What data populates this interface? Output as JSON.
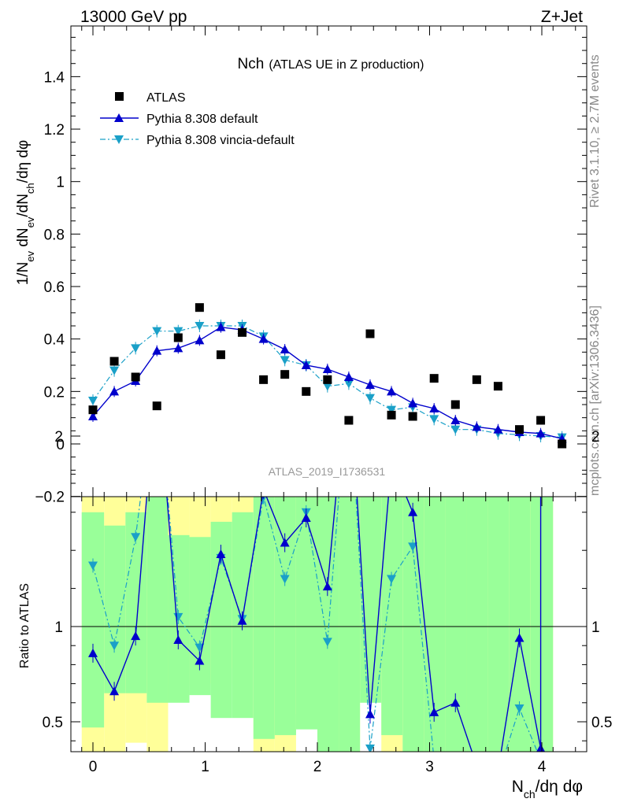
{
  "header": {
    "left": "13000 GeV pp",
    "right": "Z+Jet"
  },
  "side_texts": {
    "rivet": "Rivet 3.1.10, ≥ 2.7M events",
    "mcplots": "mcplots.cern.ch [arXiv:1306.3436]"
  },
  "colors": {
    "data": "#000000",
    "pythia_default": "#0000cc",
    "pythia_vincia": "#1aa0c8",
    "band_inner": "#99ff99",
    "band_outer": "#ffff99"
  },
  "chart_data": [
    {
      "type": "scatter",
      "panel": "main",
      "title_main": "Nch",
      "title_sub": "(ATLAS UE in Z production)",
      "analysis_label": "ATLAS_2019_I1736531",
      "ylabel": "1/N_ev dN_ev/dN_ch/dη dφ",
      "xlim": [
        -0.2,
        4.4
      ],
      "ylim": [
        -0.2,
        1.6
      ],
      "y_ticks": [
        "−0.2",
        "0",
        "0.2",
        "0.4",
        "0.6",
        "0.8",
        "1",
        "1.2",
        "1.4"
      ],
      "legend_position": "top-left",
      "series": [
        {
          "name": "ATLAS",
          "style": "markers",
          "x": [
            0.0,
            0.19,
            0.38,
            0.57,
            0.76,
            0.95,
            1.14,
            1.33,
            1.52,
            1.71,
            1.9,
            2.09,
            2.28,
            2.47,
            2.66,
            2.85,
            3.04,
            3.23,
            3.42,
            3.61,
            3.8,
            3.99,
            4.18
          ],
          "y": [
            0.13,
            0.315,
            0.255,
            0.145,
            0.405,
            0.52,
            0.34,
            0.425,
            0.245,
            0.265,
            0.2,
            0.245,
            0.09,
            0.42,
            0.11,
            0.105,
            0.25,
            0.15,
            0.245,
            0.22,
            0.055,
            0.09,
            0.0
          ]
        },
        {
          "name": "Pythia 8.308 default",
          "style": "solid-up-triangle",
          "x": [
            0.0,
            0.19,
            0.38,
            0.57,
            0.76,
            0.95,
            1.14,
            1.33,
            1.52,
            1.71,
            1.9,
            2.09,
            2.28,
            2.47,
            2.66,
            2.85,
            3.04,
            3.23,
            3.42,
            3.61,
            3.8,
            3.99,
            4.18
          ],
          "y": [
            0.105,
            0.2,
            0.24,
            0.355,
            0.365,
            0.395,
            0.445,
            0.435,
            0.4,
            0.36,
            0.3,
            0.285,
            0.255,
            0.225,
            0.2,
            0.155,
            0.135,
            0.09,
            0.065,
            0.055,
            0.045,
            0.04,
            0.02
          ]
        },
        {
          "name": "Pythia 8.308 vincia-default",
          "style": "dashdot-down-triangle",
          "x": [
            0.0,
            0.19,
            0.38,
            0.57,
            0.76,
            0.95,
            1.14,
            1.33,
            1.52,
            1.71,
            1.9,
            2.09,
            2.28,
            2.47,
            2.66,
            2.85,
            3.04,
            3.23,
            3.42,
            3.61,
            3.8,
            3.99,
            4.18
          ],
          "y": [
            0.165,
            0.28,
            0.365,
            0.43,
            0.43,
            0.45,
            0.45,
            0.45,
            0.41,
            0.32,
            0.3,
            0.22,
            0.23,
            0.175,
            0.13,
            0.14,
            0.095,
            0.055,
            0.055,
            0.04,
            0.035,
            0.03,
            0.025
          ]
        }
      ]
    },
    {
      "type": "line",
      "panel": "ratio",
      "ylabel": "Ratio to ATLAS",
      "xlabel": "N_ch/dη dφ",
      "xlim": [
        -0.2,
        4.4
      ],
      "ylim": [
        0.33,
        2.3
      ],
      "x_ticks": [
        "0",
        "1",
        "2",
        "3",
        "4"
      ],
      "y_ticks": [
        "0.5",
        "1",
        "2"
      ],
      "reference_line": 1.0,
      "bands": {
        "bin_edges": [
          -0.1,
          0.1,
          0.29,
          0.48,
          0.67,
          0.86,
          1.05,
          1.24,
          1.43,
          1.62,
          1.81,
          2.0,
          2.19,
          2.38,
          2.57,
          2.76,
          2.95,
          3.14,
          3.33,
          3.52,
          3.71,
          3.9,
          4.1
        ],
        "inner_low": [
          0.47,
          0.65,
          0.65,
          0.6,
          0.6,
          0.64,
          0.52,
          0.52,
          0.41,
          0.43,
          0.46,
          0.34,
          0.34,
          0.6,
          0.43,
          0.34,
          0.34,
          0.34,
          0.34,
          0.34,
          0.34,
          0.34
        ],
        "inner_high": [
          1.6,
          1.53,
          1.6,
          2.3,
          1.48,
          1.47,
          1.55,
          1.6,
          2.3,
          2.3,
          2.3,
          2.3,
          2.3,
          2.3,
          2.3,
          2.3,
          2.3,
          2.3,
          2.3,
          2.3,
          2.3,
          2.3
        ],
        "outer_low": [
          0.33,
          0.33,
          0.39,
          0.33,
          0.7,
          0.69,
          0.7,
          0.78,
          0.33,
          0.33,
          0.54,
          0.54,
          0.33,
          0.66,
          0.33,
          0.33,
          0.33,
          0.33,
          0.33,
          0.33,
          0.33,
          0.33
        ],
        "outer_high": [
          2.0,
          1.8,
          2.0,
          2.3,
          1.93,
          1.93,
          1.93,
          1.93,
          2.3,
          2.3,
          2.3,
          2.3,
          2.3,
          2.3,
          2.3,
          2.3,
          2.3,
          2.3,
          2.3,
          2.3,
          2.3,
          2.3
        ]
      },
      "series": [
        {
          "name": "Pythia 8.308 default",
          "x": [
            0.0,
            0.19,
            0.38,
            0.57,
            0.76,
            0.95,
            1.14,
            1.33,
            1.52,
            1.71,
            1.9,
            2.09,
            2.28,
            2.47,
            2.66,
            2.85,
            3.04,
            3.23,
            3.42,
            3.61,
            3.8,
            3.99
          ],
          "y": [
            0.86,
            0.66,
            0.95,
            2.35,
            0.93,
            0.82,
            1.38,
            1.03,
            1.72,
            1.44,
            1.57,
            1.21,
            2.4,
            0.54,
            1.87,
            1.6,
            0.55,
            0.6,
            0.27,
            0.24,
            0.94,
            0.36
          ]
        },
        {
          "name": "Pythia 8.308 vincia-default",
          "x": [
            0.0,
            0.19,
            0.38,
            0.57,
            0.76,
            0.95,
            1.14,
            1.33,
            1.52,
            1.71,
            1.9,
            2.09,
            2.28,
            2.47,
            2.66,
            2.85,
            3.04,
            3.23,
            3.42,
            3.61,
            3.8,
            3.99
          ],
          "y": [
            1.32,
            0.9,
            1.47,
            2.35,
            1.05,
            0.89,
            1.36,
            1.04,
            1.68,
            1.25,
            1.6,
            0.92,
            2.35,
            0.36,
            1.25,
            1.42,
            0.3,
            0.25,
            0.25,
            0.22,
            0.57,
            0.3
          ]
        }
      ]
    }
  ]
}
